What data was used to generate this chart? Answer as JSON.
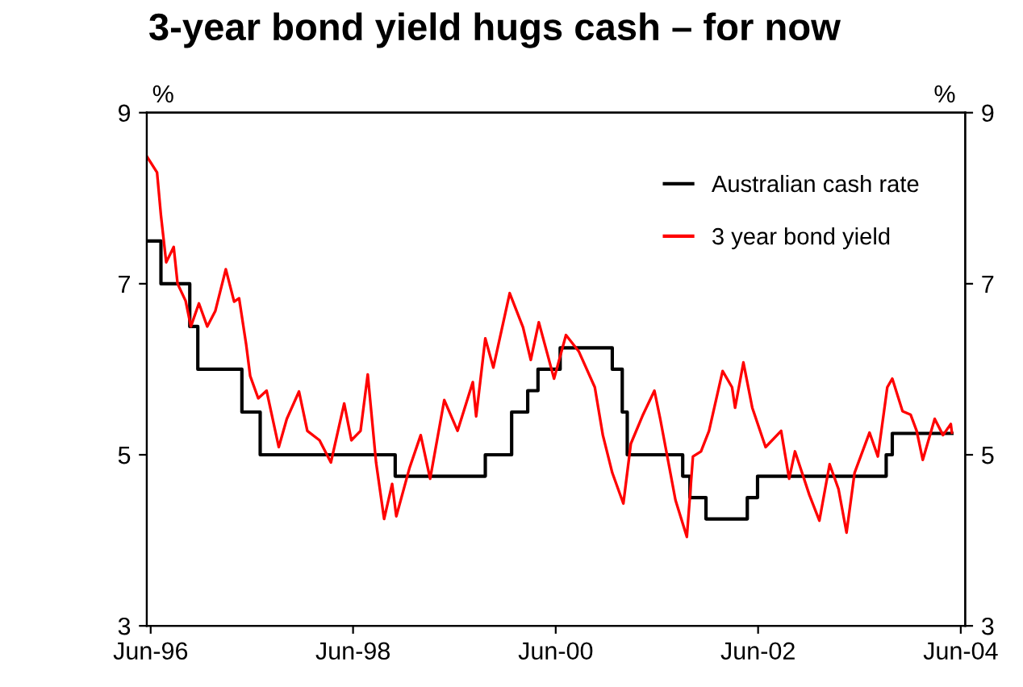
{
  "chart_data": {
    "type": "line",
    "title": "3-year bond yield hugs cash – for now",
    "ylabel": "%",
    "y2label": "%",
    "xlim": [
      "1996-06-01",
      "2004-07-01"
    ],
    "xticks": [
      {
        "value": "1996-06-15",
        "label": "Jun-96"
      },
      {
        "value": "1998-06-15",
        "label": "Jun-98"
      },
      {
        "value": "2000-06-15",
        "label": "Jun-00"
      },
      {
        "value": "2002-06-15",
        "label": "Jun-02"
      },
      {
        "value": "2004-06-15",
        "label": "Jun-04"
      }
    ],
    "ylim": [
      3,
      9
    ],
    "yticks": [
      3,
      5,
      7,
      9
    ],
    "y2lim": [
      3,
      9
    ],
    "y2ticks": [
      3,
      5,
      7,
      9
    ],
    "legend": "top right",
    "grid": false,
    "series": [
      {
        "name": "Australian cash rate",
        "type": "step",
        "color": "#000000",
        "x": [
          "1996-06-01",
          "1996-07-22",
          "1996-11-03",
          "1996-12-02",
          "1997-05-10",
          "1997-07-15",
          "1998-11-14",
          "1999-10-05",
          "2000-01-08",
          "2000-03-06",
          "2000-04-12",
          "2000-07-01",
          "2001-01-05",
          "2001-02-10",
          "2001-02-28",
          "2001-09-16",
          "2001-10-12",
          "2001-12-09",
          "2002-05-07",
          "2002-06-13",
          "2003-09-20",
          "2003-10-12",
          "2004-05-14"
        ],
        "values": [
          7.5,
          7.0,
          6.5,
          6.0,
          5.5,
          5.0,
          4.75,
          5.0,
          5.5,
          5.75,
          6.0,
          6.25,
          6.0,
          5.5,
          5.0,
          4.75,
          4.5,
          4.25,
          4.5,
          4.75,
          5.0,
          5.25,
          5.25
        ]
      },
      {
        "name": "3 year bond yield",
        "color": "#ff0000",
        "x": [
          "1996-06-01",
          "1996-07-08",
          "1996-07-22",
          "1996-08-10",
          "1996-09-06",
          "1996-09-20",
          "1996-10-19",
          "1996-11-07",
          "1996-12-06",
          "1997-01-05",
          "1997-02-03",
          "1997-03-13",
          "1997-04-12",
          "1997-04-30",
          "1997-05-25",
          "1997-06-09",
          "1997-07-08",
          "1997-08-07",
          "1997-09-20",
          "1997-10-19",
          "1997-12-02",
          "1998-01-01",
          "1998-02-14",
          "1998-03-27",
          "1998-05-14",
          "1998-06-09",
          "1998-07-12",
          "1998-08-07",
          "1998-09-06",
          "1998-10-05",
          "1998-11-03",
          "1998-11-18",
          "1999-01-05",
          "1999-02-14",
          "1999-03-20",
          "1999-05-10",
          "1999-06-27",
          "1999-08-21",
          "1999-09-02",
          "1999-10-05",
          "1999-11-03",
          "2000-01-01",
          "2000-02-18",
          "2000-03-17",
          "2000-04-15",
          "2000-06-09",
          "2000-07-22",
          "2000-09-06",
          "2000-11-03",
          "2000-12-02",
          "2001-01-05",
          "2001-02-14",
          "2001-03-13",
          "2001-04-26",
          "2001-06-06",
          "2001-06-27",
          "2001-08-21",
          "2001-10-01",
          "2001-10-23",
          "2001-11-21",
          "2001-12-20",
          "2002-02-07",
          "2002-03-13",
          "2002-03-24",
          "2002-04-23",
          "2002-05-25",
          "2002-07-12",
          "2002-09-06",
          "2002-10-05",
          "2002-10-26",
          "2002-12-17",
          "2003-01-22",
          "2003-02-28",
          "2003-04-01",
          "2003-04-30",
          "2003-05-29",
          "2003-07-22",
          "2003-08-21",
          "2003-09-24",
          "2003-10-12",
          "2003-11-18",
          "2003-12-17",
          "2004-01-08",
          "2004-01-30",
          "2004-03-13",
          "2004-04-12",
          "2004-05-10",
          "2004-05-14"
        ],
        "values": [
          8.49,
          8.3,
          7.8,
          7.25,
          7.43,
          7.0,
          6.8,
          6.5,
          6.77,
          6.5,
          6.68,
          7.17,
          6.79,
          6.83,
          6.3,
          5.92,
          5.66,
          5.75,
          5.09,
          5.42,
          5.74,
          5.28,
          5.17,
          4.91,
          5.6,
          5.17,
          5.28,
          5.94,
          4.91,
          4.25,
          4.66,
          4.28,
          4.85,
          5.23,
          4.72,
          5.64,
          5.28,
          5.85,
          5.45,
          6.36,
          6.02,
          6.89,
          6.49,
          6.11,
          6.55,
          5.89,
          6.4,
          6.21,
          5.79,
          5.23,
          4.79,
          4.43,
          5.13,
          5.47,
          5.75,
          5.42,
          4.47,
          4.04,
          4.98,
          5.04,
          5.28,
          5.98,
          5.79,
          5.55,
          6.08,
          5.55,
          5.09,
          5.28,
          4.72,
          5.04,
          4.53,
          4.23,
          4.89,
          4.6,
          4.09,
          4.79,
          5.26,
          4.98,
          5.79,
          5.89,
          5.51,
          5.47,
          5.28,
          4.94,
          5.42,
          5.23,
          5.36,
          5.26
        ]
      }
    ]
  }
}
